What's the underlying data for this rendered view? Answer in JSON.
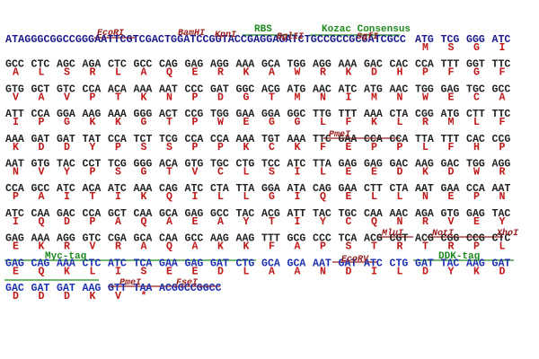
{
  "rows": [
    {
      "prefix": "ATAGGGCGGCCGGGAATTCGTCGACTGGATCCGGTACCGAGGAGATCTGCCGCCGCGATCGCC",
      "codons": [
        "ATG",
        "TCG",
        "GGG",
        "ATC"
      ],
      "amino_acids": [
        "M",
        "S",
        "G",
        "I"
      ]
    },
    {
      "codons": [
        "GCC",
        "CTC",
        "AGC",
        "AGA",
        "CTC",
        "GCC",
        "CAG",
        "GAG",
        "AGG",
        "AAA",
        "GCA",
        "TGG",
        "AGG",
        "AAA",
        "GAC",
        "CAC",
        "CCA",
        "TTT",
        "GGT",
        "TTC"
      ],
      "amino_acids": [
        "A",
        "L",
        "S",
        "R",
        "L",
        "A",
        "Q",
        "E",
        "R",
        "K",
        "A",
        "W",
        "R",
        "K",
        "D",
        "H",
        "P",
        "F",
        "G",
        "F"
      ]
    },
    {
      "codons": [
        "GTG",
        "GCT",
        "GTC",
        "CCA",
        "ACA",
        "AAA",
        "AAT",
        "CCC",
        "GAT",
        "GGC",
        "ACG",
        "ATG",
        "AAC",
        "ATC",
        "ATG",
        "AAC",
        "TGG",
        "GAG",
        "TGC",
        "GCC"
      ],
      "amino_acids": [
        "V",
        "A",
        "V",
        "P",
        "T",
        "K",
        "N",
        "P",
        "D",
        "G",
        "T",
        "M",
        "N",
        "I",
        "M",
        "N",
        "W",
        "E",
        "C",
        "A"
      ]
    },
    {
      "codons": [
        "ATT",
        "CCA",
        "GGA",
        "AAG",
        "AAA",
        "GGG",
        "ACT",
        "CCG",
        "TGG",
        "GAA",
        "GGA",
        "GGC",
        "TTG",
        "TTT",
        "AAA",
        "CTA",
        "CGG",
        "ATG",
        "CTT",
        "TTC"
      ],
      "amino_acids": [
        "I",
        "P",
        "G",
        "K",
        "K",
        "G",
        "T",
        "P",
        "W",
        "E",
        "G",
        "G",
        "L",
        "F",
        "K",
        "L",
        "R",
        "M",
        "L",
        "F"
      ]
    },
    {
      "codons": [
        "AAA",
        "GAT",
        "GAT",
        "TAT",
        "CCA",
        "TCT",
        "TCG",
        "CCA",
        "CCA",
        "AAA",
        "TGT",
        "AAA",
        "TTC",
        "GAA",
        "CCA",
        "CCA",
        "TTA",
        "TTT",
        "CAC",
        "CCG"
      ],
      "amino_acids": [
        "K",
        "D",
        "D",
        "Y",
        "P",
        "S",
        "S",
        "P",
        "P",
        "K",
        "C",
        "K",
        "F",
        "E",
        "P",
        "P",
        "L",
        "F",
        "H",
        "P"
      ]
    },
    {
      "codons": [
        "AAT",
        "GTG",
        "TAC",
        "CCT",
        "TCG",
        "GGG",
        "ACA",
        "GTG",
        "TGC",
        "CTG",
        "TCC",
        "ATC",
        "TTA",
        "GAG",
        "GAG",
        "GAC",
        "AAG",
        "GAC",
        "TGG",
        "AGG"
      ],
      "amino_acids": [
        "N",
        "V",
        "Y",
        "P",
        "S",
        "G",
        "T",
        "V",
        "C",
        "L",
        "S",
        "I",
        "L",
        "E",
        "E",
        "D",
        "K",
        "D",
        "W",
        "R"
      ]
    },
    {
      "codons": [
        "CCA",
        "GCC",
        "ATC",
        "ACA",
        "ATC",
        "AAA",
        "CAG",
        "ATC",
        "CTA",
        "TTA",
        "GGA",
        "ATA",
        "CAG",
        "GAA",
        "CTT",
        "CTA",
        "AAT",
        "GAA",
        "CCA",
        "AAT"
      ],
      "amino_acids": [
        "P",
        "A",
        "I",
        "T",
        "I",
        "K",
        "Q",
        "I",
        "L",
        "L",
        "G",
        "I",
        "Q",
        "E",
        "L",
        "L",
        "N",
        "E",
        "P",
        "N"
      ]
    },
    {
      "codons": [
        "ATC",
        "CAA",
        "GAC",
        "CCA",
        "GCT",
        "CAA",
        "GCA",
        "GAG",
        "GCC",
        "TAC",
        "ACG",
        "ATT",
        "TAC",
        "TGC",
        "CAA",
        "AAC",
        "AGA",
        "GTG",
        "GAG",
        "TAC"
      ],
      "amino_acids": [
        "I",
        "Q",
        "D",
        "P",
        "A",
        "Q",
        "A",
        "E",
        "A",
        "Y",
        "T",
        "I",
        "Y",
        "C",
        "Q",
        "N",
        "R",
        "V",
        "E",
        "Y"
      ]
    },
    {
      "codons": [
        "GAG",
        "AAA",
        "AGG",
        "GTC",
        "CGA",
        "GCA",
        "CAA",
        "GCC",
        "AAG",
        "AAG",
        "TTT",
        "GCG",
        "CCC",
        "TCA",
        "ACG",
        "CGT",
        "ACG",
        "CGG",
        "CCG",
        "CTC"
      ],
      "amino_acids": [
        "E",
        "K",
        "R",
        "V",
        "R",
        "A",
        "Q",
        "A",
        "K",
        "K",
        "F",
        "A",
        "P",
        "S",
        "T",
        "R",
        "T",
        "R",
        "P",
        "L"
      ]
    },
    {
      "codons": [
        "GAG",
        "CAG",
        "AAA",
        "CTC",
        "ATC",
        "TCA",
        "GAA",
        "GAG",
        "GAT",
        "CTG",
        "GCA",
        "GCA",
        "AAT",
        "GAT",
        "ATC",
        "CTG",
        "GAT",
        "TAC",
        "AAG",
        "GAT"
      ],
      "amino_acids": [
        "E",
        "Q",
        "K",
        "L",
        "I",
        "S",
        "E",
        "E",
        "D",
        "L",
        "A",
        "A",
        "N",
        "D",
        "I",
        "L",
        "D",
        "Y",
        "K",
        "D"
      ]
    },
    {
      "codons": [
        "GAC",
        "GAT",
        "GAT",
        "AAG",
        "GTT",
        "TAA",
        "ACGGCCGGCC"
      ],
      "amino_acids": [
        "D",
        "D",
        "D",
        "K",
        "V",
        "*"
      ]
    }
  ],
  "features": [
    "EcoRI",
    "BamHI",
    "KpnI",
    "RBS",
    "BglII",
    "Kozac Consensus",
    "SgfI",
    "PmeI",
    "MluI",
    "NotI",
    "XhoI",
    "Myc-tag",
    "EcoRV",
    "DDK-tag",
    "PmeI",
    "FseI"
  ]
}
